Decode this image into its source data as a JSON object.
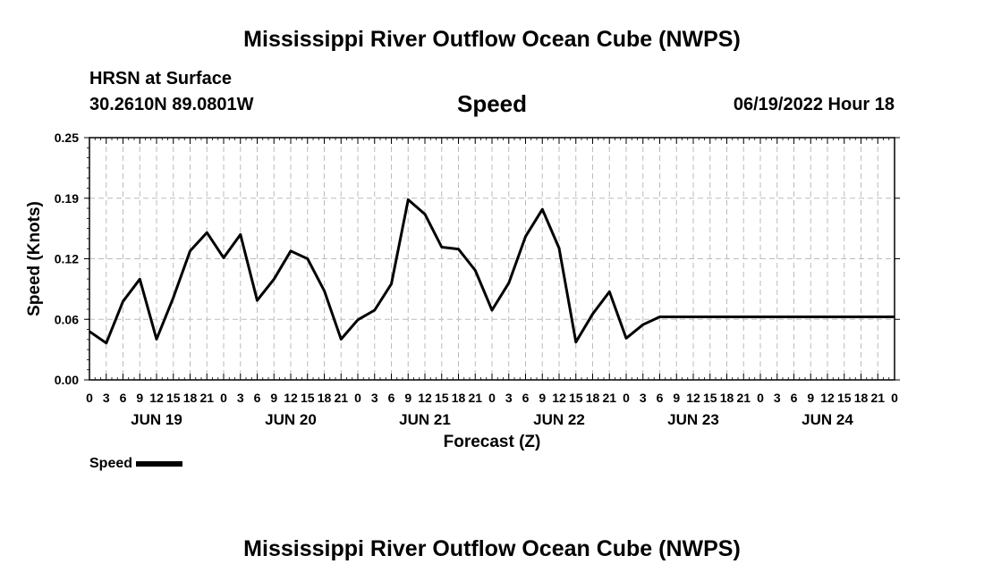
{
  "header": {
    "title": "Mississippi River Outflow Ocean Cube (NWPS)",
    "location": "HRSN at Surface",
    "coords": "30.2610N  89.0801W",
    "variable": "Speed",
    "datetime": "06/19/2022 Hour 18"
  },
  "footer": {
    "title": "Mississippi River Outflow Ocean Cube (NWPS)"
  },
  "legend": {
    "label": "Speed"
  },
  "colors": {
    "line": "#000000",
    "grid": "#bbbbbb"
  },
  "chart_data": {
    "type": "line",
    "xlabel": "Forecast (Z)",
    "ylabel": "Speed (Knots)",
    "ylim": [
      0,
      0.25
    ],
    "xlim_hours": [
      0,
      144
    ],
    "yticks": [
      "0.00",
      "0.06",
      "0.12",
      "0.19",
      "0.25"
    ],
    "xtick_labels": [
      "0",
      "3",
      "6",
      "9",
      "12",
      "15",
      "18",
      "21",
      "0",
      "3",
      "6",
      "9",
      "12",
      "15",
      "18",
      "21",
      "0",
      "3",
      "6",
      "9",
      "12",
      "15",
      "18",
      "21",
      "0",
      "3",
      "6",
      "9",
      "12",
      "15",
      "18",
      "21",
      "0",
      "3",
      "6",
      "9",
      "12",
      "15",
      "18",
      "21",
      "0",
      "3",
      "6",
      "9",
      "12",
      "15",
      "18",
      "21",
      "0"
    ],
    "days": [
      "JUN 19",
      "JUN 20",
      "JUN 21",
      "JUN 22",
      "JUN 23",
      "JUN 24"
    ],
    "grid": true,
    "legend_position": "bottom-left",
    "series": [
      {
        "name": "Speed",
        "x": [
          0,
          3,
          6,
          9,
          12,
          15,
          18,
          21,
          24,
          27,
          30,
          33,
          36,
          39,
          42,
          45,
          48,
          51,
          54,
          57,
          60,
          63,
          66,
          69,
          72,
          75,
          78,
          81,
          84,
          87,
          90,
          93,
          96,
          99,
          102,
          105,
          108,
          111,
          114,
          117,
          120,
          123,
          126,
          144
        ],
        "values": [
          0.05,
          0.038,
          0.081,
          0.104,
          0.042,
          0.085,
          0.133,
          0.152,
          0.126,
          0.15,
          0.082,
          0.104,
          0.133,
          0.125,
          0.092,
          0.042,
          0.062,
          0.072,
          0.099,
          0.186,
          0.171,
          0.137,
          0.135,
          0.113,
          0.072,
          0.1,
          0.148,
          0.176,
          0.136,
          0.039,
          0.068,
          0.091,
          0.043,
          0.057,
          0.065,
          0.065,
          0.065,
          0.065,
          0.065,
          0.065,
          0.065,
          0.065,
          0.065,
          0.065
        ]
      }
    ]
  }
}
